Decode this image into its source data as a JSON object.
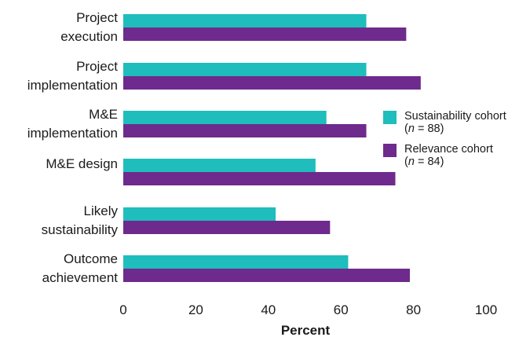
{
  "chart_data": {
    "type": "bar",
    "orientation": "horizontal",
    "categories": [
      [
        "Project",
        "execution"
      ],
      [
        "Project",
        "implementation"
      ],
      [
        "M&E",
        "implementation"
      ],
      [
        "M&E design"
      ],
      [
        "Likely",
        "sustainability"
      ],
      [
        "Outcome",
        "achievement"
      ]
    ],
    "series": [
      {
        "name": "Sustainability cohort",
        "n_label": [
          "(",
          "n",
          " = 88)"
        ],
        "color": "#1fbdbb",
        "values": [
          67,
          67,
          56,
          53,
          42,
          62
        ]
      },
      {
        "name": "Relevance cohort",
        "n_label": [
          "(",
          "n",
          " = 84)"
        ],
        "color": "#6e2a8c",
        "values": [
          78,
          82,
          67,
          75,
          57,
          79
        ]
      }
    ],
    "xlabel": "Percent",
    "xlim": [
      0,
      100
    ],
    "xticks": [
      "0",
      "20",
      "40",
      "60",
      "80",
      "100"
    ],
    "grid": false,
    "legend_position": "right"
  }
}
